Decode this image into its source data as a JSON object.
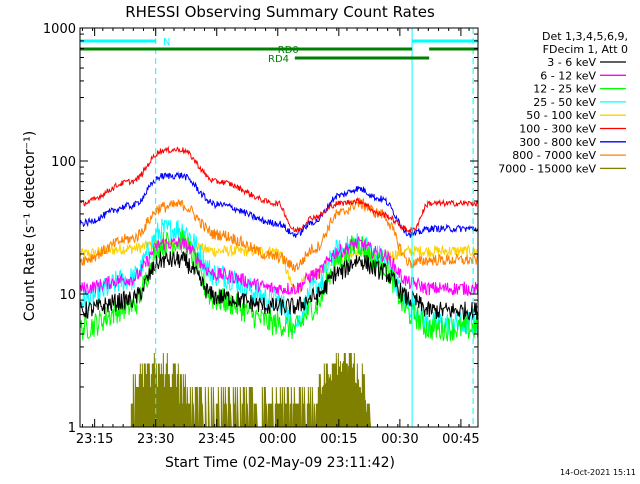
{
  "chart_data": {
    "type": "line",
    "title": "RHESSI Observing Summary Count Rates",
    "xlabel": "Start Time (02-May-09 23:11:42)",
    "ylabel": "Count Rate (s⁻¹ detector⁻¹)",
    "y_scale": "log",
    "ylim": [
      1,
      1000
    ],
    "xlim_minutes": [
      23.19,
      24.82
    ],
    "x_ticks": [
      {
        "label": "23:15",
        "value": 23.25
      },
      {
        "label": "23:30",
        "value": 23.5
      },
      {
        "label": "23:45",
        "value": 23.75
      },
      {
        "label": "00:00",
        "value": 24.0
      },
      {
        "label": "00:15",
        "value": 24.25
      },
      {
        "label": "00:30",
        "value": 24.5
      },
      {
        "label": "00:45",
        "value": 24.75
      }
    ],
    "y_ticks": [
      {
        "label": "1",
        "value": 1
      },
      {
        "label": "10",
        "value": 10
      },
      {
        "label": "100",
        "value": 100
      },
      {
        "label": "1000",
        "value": 1000
      }
    ],
    "legend_header": [
      "Det 1,3,4,5,6,9,",
      "FDecim 1, Att 0"
    ],
    "legend_position": "right",
    "series": [
      {
        "name": "3 - 6 keV",
        "color": "#000000",
        "x": [
          23.19,
          23.4,
          23.53,
          23.6,
          23.75,
          24.0,
          24.07,
          24.15,
          24.25,
          24.33,
          24.42,
          24.55,
          24.62,
          24.82
        ],
        "values": [
          7.5,
          9,
          18,
          18,
          9.5,
          8,
          8,
          9.5,
          14.5,
          18,
          15,
          9,
          7.5,
          7.5
        ]
      },
      {
        "name": "6 - 12 keV",
        "color": "#ff00ff",
        "x": [
          23.19,
          23.4,
          23.53,
          23.6,
          23.75,
          24.0,
          24.07,
          24.15,
          24.25,
          24.33,
          24.42,
          24.55,
          24.62,
          24.82
        ],
        "values": [
          11,
          13,
          24,
          24,
          14,
          11,
          11,
          14,
          21,
          24,
          20,
          12,
          11,
          11
        ]
      },
      {
        "name": "12 - 25 keV",
        "color": "#00ff00",
        "x": [
          23.19,
          23.4,
          23.53,
          23.6,
          23.75,
          24.0,
          24.07,
          24.15,
          24.25,
          24.33,
          24.42,
          24.55,
          24.62,
          24.82
        ],
        "values": [
          5.5,
          8,
          24,
          25,
          9,
          6,
          5.5,
          8,
          18,
          24,
          17,
          7,
          5.5,
          5.5
        ]
      },
      {
        "name": "25 - 50 keV",
        "color": "#00ffff",
        "x": [
          23.19,
          23.4,
          23.53,
          23.6,
          23.75,
          24.0,
          24.07,
          24.15,
          24.25,
          24.33,
          24.42,
          24.55,
          24.62,
          24.82
        ],
        "values": [
          9,
          13,
          30,
          31,
          14,
          9,
          6,
          11,
          21,
          24,
          19,
          8,
          6,
          6
        ]
      },
      {
        "name": "50 - 100 keV",
        "color": "#ffd000",
        "x": [
          23.19,
          23.4,
          23.53,
          23.6,
          23.75,
          24.0,
          24.07,
          24.15,
          24.25,
          24.33,
          24.42,
          24.55,
          24.62,
          24.82
        ],
        "values": [
          20,
          22,
          24,
          24,
          21,
          21,
          11,
          14,
          19,
          21,
          19,
          21,
          21,
          21
        ]
      },
      {
        "name": "100 - 300 keV",
        "color": "#ff0000",
        "x": [
          23.19,
          23.4,
          23.53,
          23.6,
          23.75,
          24.0,
          24.07,
          24.15,
          24.25,
          24.33,
          24.42,
          24.55,
          24.62,
          24.82
        ],
        "values": [
          48,
          70,
          120,
          122,
          70,
          48,
          30,
          38,
          48,
          50,
          40,
          30,
          48,
          48
        ]
      },
      {
        "name": "300 - 800 keV",
        "color": "#0000ff",
        "x": [
          23.19,
          23.4,
          23.53,
          23.6,
          23.75,
          24.0,
          24.07,
          24.15,
          24.25,
          24.33,
          24.42,
          24.55,
          24.62,
          24.82
        ],
        "values": [
          34,
          46,
          77,
          78,
          47,
          34,
          28,
          35,
          55,
          62,
          52,
          28,
          31,
          31
        ]
      },
      {
        "name": "800 - 7000 keV",
        "color": "#ff8000",
        "x": [
          23.19,
          23.4,
          23.53,
          23.6,
          23.75,
          24.0,
          24.07,
          24.15,
          24.25,
          24.33,
          24.42,
          24.55,
          24.62,
          24.82
        ],
        "values": [
          18,
          26,
          45,
          47,
          28,
          19,
          16,
          22,
          40,
          48,
          40,
          17,
          18,
          18
        ]
      },
      {
        "name": "7000 - 15000 keV",
        "color": "#808000",
        "x": [
          23.4,
          23.43,
          23.47,
          23.53,
          23.56,
          23.6,
          23.65,
          24.15,
          24.18,
          24.22,
          24.27,
          24.3,
          24.34,
          24.38
        ],
        "values": [
          1,
          1.8,
          2.5,
          3,
          2.5,
          1.8,
          1,
          1,
          2,
          2.6,
          3,
          2.6,
          2,
          1
        ]
      }
    ],
    "flags": [
      {
        "label": "N",
        "color": "#00ffff",
        "x": [
          [
            23.19,
            23.5
          ],
          [
            24.55,
            24.82
          ]
        ]
      },
      {
        "label": "RD0",
        "color": "#008000",
        "x": [
          [
            23.19,
            24.55
          ],
          [
            24.62,
            24.82
          ]
        ]
      },
      {
        "label": "RD4",
        "color": "#008000",
        "x": [
          [
            24.07,
            24.62
          ]
        ]
      }
    ],
    "vertical_markers": [
      {
        "x": 23.5,
        "style": "dashed",
        "color": "#00ffff"
      },
      {
        "x": 24.55,
        "style": "solid",
        "color": "#00ffff"
      },
      {
        "x": 24.8,
        "style": "dashed",
        "color": "#00ffff"
      }
    ],
    "timestamp": "14-Oct-2021 15:11"
  }
}
